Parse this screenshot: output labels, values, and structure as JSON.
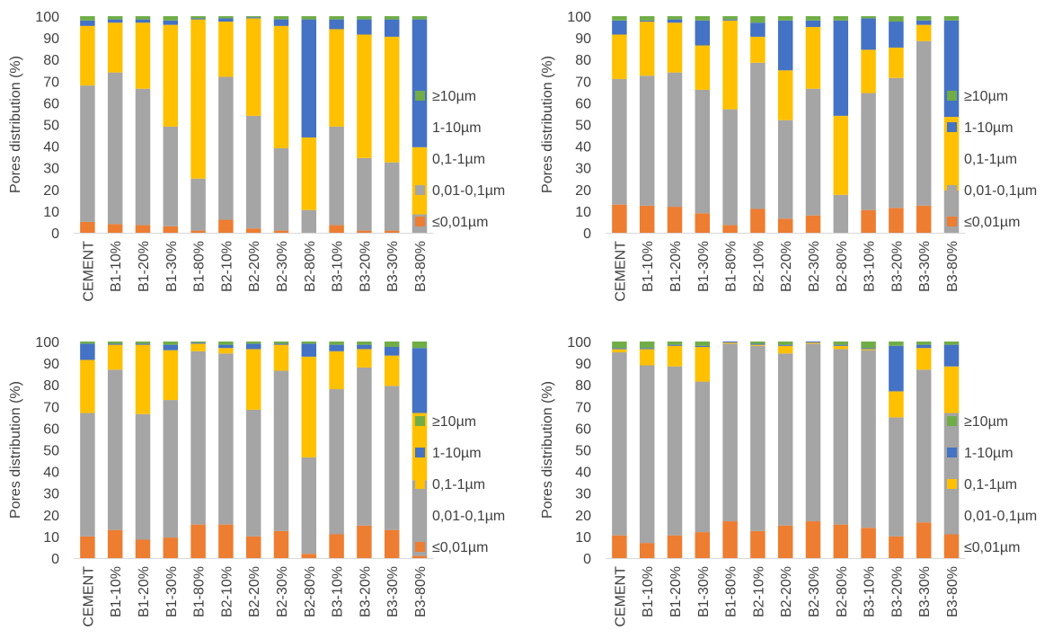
{
  "legend_labels": [
    "≥10µm",
    "1-10µm",
    "0,1-1µm",
    "0,01-0,1µm",
    "≤0,01µm"
  ],
  "colors": {
    "ge10": "#70ad47",
    "r1_10": "#4472c4",
    "r01_1": "#ffc000",
    "r001_01": "#a5a5a5",
    "le001": "#ed7d31"
  },
  "chart_data": [
    {
      "type": "bar",
      "stacked": true,
      "ylabel": "Pores distribution (%)",
      "ylim": [
        0,
        100
      ],
      "yticks": [
        0,
        10,
        20,
        30,
        40,
        50,
        60,
        70,
        80,
        90,
        100
      ],
      "grid": false,
      "legend_position": "right",
      "categories": [
        "CEMENT",
        "B1-10%",
        "B1-20%",
        "B1-30%",
        "B1-80%",
        "B2-10%",
        "B2-20%",
        "B2-30%",
        "B2-80%",
        "B3-10%",
        "B3-20%",
        "B3-30%",
        "B3-80%"
      ],
      "series": [
        {
          "name": "≤0,01µm",
          "color_key": "le001",
          "values": [
            5,
            4,
            3.5,
            3,
            1,
            6,
            2,
            1,
            0,
            3.5,
            1,
            1,
            0
          ]
        },
        {
          "name": "0,01-0,1µm",
          "color_key": "r001_01",
          "values": [
            63,
            70,
            63,
            46,
            24,
            66,
            52,
            38,
            10.5,
            45.5,
            33.5,
            31.5,
            8.5
          ]
        },
        {
          "name": "0,1-1µm",
          "color_key": "r01_1",
          "values": [
            27.5,
            23,
            30.5,
            47,
            73.5,
            25.5,
            45,
            56.5,
            33.5,
            45,
            57,
            58,
            31
          ]
        },
        {
          "name": "1-10µm",
          "color_key": "r1_10",
          "values": [
            2.5,
            1.5,
            1.5,
            2,
            0.5,
            1.5,
            0.5,
            3,
            54.5,
            4.5,
            7,
            8,
            59
          ]
        },
        {
          "name": "≥10µm",
          "color_key": "ge10",
          "values": [
            2,
            1.5,
            1.5,
            2,
            1,
            1,
            0.5,
            1.5,
            1.5,
            1.5,
            1.5,
            1.5,
            1.5
          ]
        }
      ]
    },
    {
      "type": "bar",
      "stacked": true,
      "ylabel": "Pores distribution (%)",
      "ylim": [
        0,
        100
      ],
      "yticks": [
        0,
        10,
        20,
        30,
        40,
        50,
        60,
        70,
        80,
        90,
        100
      ],
      "grid": false,
      "legend_position": "right",
      "categories": [
        "CEMENT",
        "B1-10%",
        "B1-20%",
        "B1-30%",
        "B1-80%",
        "B2-10%",
        "B2-20%",
        "B2-30%",
        "B2-80%",
        "B3-10%",
        "B3-20%",
        "B3-30%",
        "B3-80%"
      ],
      "series": [
        {
          "name": "≤0,01µm",
          "color_key": "le001",
          "values": [
            13,
            12.5,
            12,
            9,
            3.5,
            11,
            6.5,
            8,
            0,
            10.5,
            11.5,
            12.5,
            0
          ]
        },
        {
          "name": "0,01-0,1µm",
          "color_key": "r001_01",
          "values": [
            58,
            60,
            62,
            57,
            53.5,
            67.5,
            45.5,
            58.5,
            17.5,
            54,
            60,
            76,
            19.5
          ]
        },
        {
          "name": "0,1-1µm",
          "color_key": "r01_1",
          "values": [
            20.5,
            25,
            23,
            20.5,
            41,
            12,
            23,
            28.5,
            36.5,
            20,
            14,
            7.5,
            34
          ]
        },
        {
          "name": "1-10µm",
          "color_key": "r1_10",
          "values": [
            6.5,
            0.5,
            1.5,
            11.5,
            0.5,
            6.5,
            23,
            3,
            44,
            14.5,
            12,
            2,
            44.5
          ]
        },
        {
          "name": "≥10µm",
          "color_key": "ge10",
          "values": [
            2,
            2,
            1.5,
            2,
            1.5,
            3,
            2,
            2,
            2,
            1,
            2.5,
            2,
            2
          ]
        }
      ]
    },
    {
      "type": "bar",
      "stacked": true,
      "ylabel": "Pores distribution (%)",
      "ylim": [
        0,
        100
      ],
      "yticks": [
        0,
        10,
        20,
        30,
        40,
        50,
        60,
        70,
        80,
        90,
        100
      ],
      "grid": false,
      "legend_position": "right",
      "categories": [
        "CEMENT",
        "B1-10%",
        "B1-20%",
        "B1-30%",
        "B1-80%",
        "B2-10%",
        "B2-20%",
        "B2-30%",
        "B2-80%",
        "B3-10%",
        "B3-20%",
        "B3-30%",
        "B3-80%"
      ],
      "series": [
        {
          "name": "≤0,01µm",
          "color_key": "le001",
          "values": [
            10,
            13,
            8.5,
            9.5,
            15.5,
            15.5,
            10,
            12.5,
            2,
            11,
            15,
            13,
            1
          ]
        },
        {
          "name": "0,01-0,1µm",
          "color_key": "r001_01",
          "values": [
            57,
            74,
            58,
            63.5,
            80,
            79,
            58.5,
            74,
            44.5,
            67,
            73,
            66.5,
            35
          ]
        },
        {
          "name": "0,1-1µm",
          "color_key": "r01_1",
          "values": [
            24.5,
            11.5,
            32,
            23,
            3.5,
            2.5,
            28,
            12,
            46.5,
            17.5,
            8.5,
            14,
            31
          ]
        },
        {
          "name": "1-10µm",
          "color_key": "r1_10",
          "values": [
            7.5,
            0.5,
            0.5,
            2.5,
            0.5,
            1.5,
            2.5,
            0.5,
            6,
            3,
            2,
            4,
            30
          ]
        },
        {
          "name": "≥10µm",
          "color_key": "ge10",
          "values": [
            1,
            1,
            1,
            1.5,
            0.5,
            1.5,
            1,
            1,
            1,
            1.5,
            1.5,
            2.5,
            3
          ]
        }
      ]
    },
    {
      "type": "bar",
      "stacked": true,
      "ylabel": "Pores distribution (%)",
      "ylim": [
        0,
        100
      ],
      "yticks": [
        0,
        10,
        20,
        30,
        40,
        50,
        60,
        70,
        80,
        90,
        100
      ],
      "grid": false,
      "legend_position": "right",
      "categories": [
        "CEMENT",
        "B1-10%",
        "B1-20%",
        "B1-30%",
        "B1-80%",
        "B2-10%",
        "B2-20%",
        "B2-30%",
        "B2-80%",
        "B3-10%",
        "B3-20%",
        "B3-30%",
        "B3-80%"
      ],
      "series": [
        {
          "name": "≤0,01µm",
          "color_key": "le001",
          "values": [
            10.5,
            7,
            10.5,
            12,
            17,
            12.5,
            15,
            17,
            15.5,
            14,
            10,
            16.5,
            11
          ]
        },
        {
          "name": "0,01-0,1µm",
          "color_key": "r001_01",
          "values": [
            84.5,
            82,
            78,
            69.5,
            82,
            85.5,
            79.5,
            82,
            81,
            82,
            55,
            70.5,
            56
          ]
        },
        {
          "name": "0,1-1µm",
          "color_key": "r01_1",
          "values": [
            1.5,
            7.5,
            9.5,
            16,
            0.5,
            0.5,
            3.5,
            0.5,
            1.5,
            0.5,
            12,
            10,
            21.5
          ]
        },
        {
          "name": "1-10µm",
          "color_key": "r1_10",
          "values": [
            0.5,
            0.5,
            0.5,
            0.5,
            0.5,
            0.5,
            0.5,
            0.5,
            0.5,
            0.5,
            21,
            1.5,
            10
          ]
        },
        {
          "name": "≥10µm",
          "color_key": "ge10",
          "values": [
            3,
            3,
            1.5,
            2,
            0,
            1,
            1.5,
            0,
            1.5,
            3,
            2,
            1.5,
            1.5
          ]
        }
      ]
    }
  ]
}
